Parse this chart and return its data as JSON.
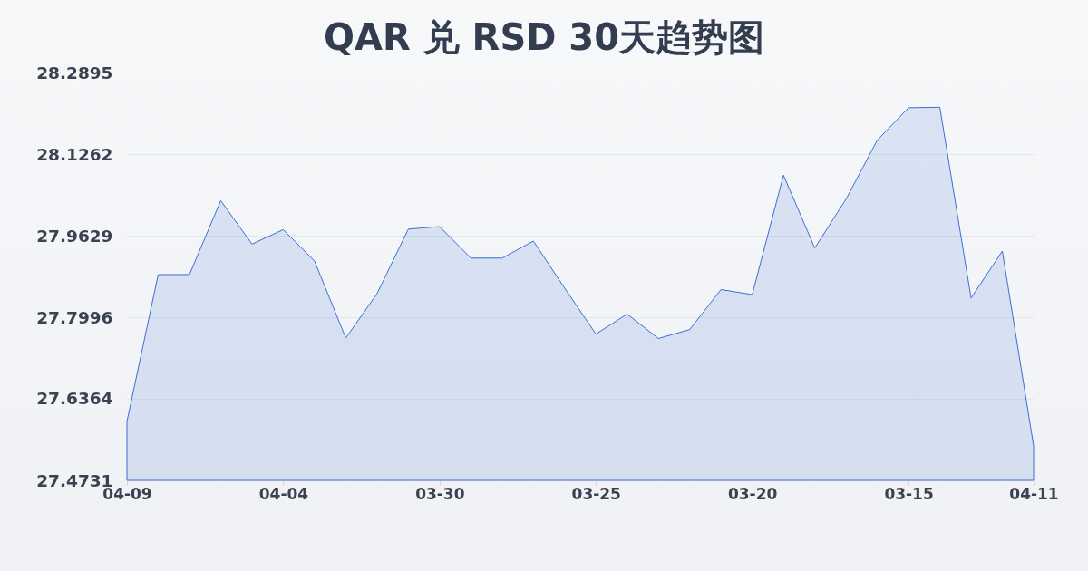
{
  "chart_data": {
    "type": "area",
    "title": "QAR 兑 RSD 30天趋势图",
    "categories": [
      "04-09",
      null,
      null,
      null,
      null,
      "04-04",
      null,
      null,
      null,
      null,
      "03-30",
      null,
      null,
      null,
      null,
      "03-25",
      null,
      null,
      null,
      null,
      "03-20",
      null,
      null,
      null,
      null,
      "03-15",
      null,
      null,
      null,
      "04-11"
    ],
    "values": [
      27.591,
      27.885,
      27.885,
      28.033,
      27.946,
      27.975,
      27.912,
      27.758,
      27.847,
      27.976,
      27.981,
      27.918,
      27.918,
      27.952,
      27.858,
      27.766,
      27.806,
      27.757,
      27.775,
      27.855,
      27.845,
      28.084,
      27.938,
      28.036,
      28.154,
      28.219,
      28.22,
      27.838,
      27.932,
      27.542
    ],
    "color": "#3b6fd4",
    "ylim": [
      27.4731,
      28.2895
    ],
    "yticks": [
      27.4731,
      27.6364,
      27.7996,
      27.9629,
      28.1262,
      28.2895
    ],
    "grid": "y"
  }
}
